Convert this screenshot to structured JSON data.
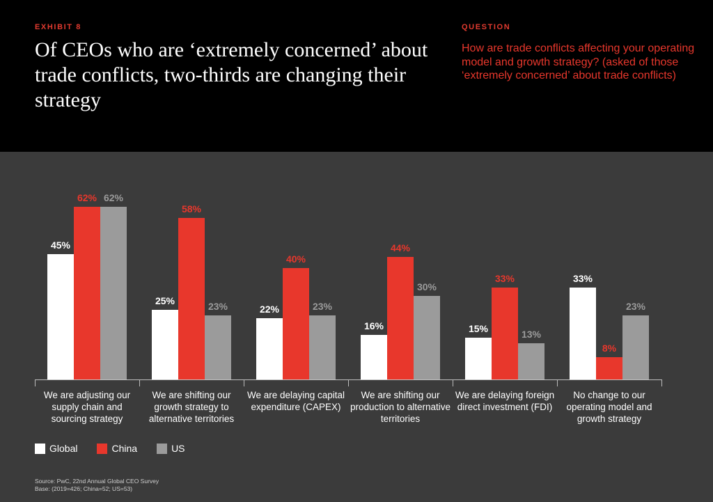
{
  "header": {
    "exhibit": "EXHIBIT 8",
    "headline": "Of CEOs who are ‘extremely concerned’ about trade conflicts, two-thirds are changing their strategy",
    "question_label": "QUESTION",
    "question": "How are trade conflicts affecting your operating model and growth strategy? (asked of those ‘extremely concerned’ about trade conflicts)"
  },
  "colors": {
    "background": "#3b3b3b",
    "header_background": "#000000",
    "accent": "#e03a2f",
    "global": "#ffffff",
    "china": "#e8372c",
    "us": "#9b9b9b"
  },
  "chart_data": {
    "type": "bar",
    "categories": [
      "We are adjusting our supply chain and sourcing strategy",
      "We are shifting our growth strategy to alternative territories",
      "We are delaying capital expenditure (CAPEX)",
      "We are shifting our production to alternative territories",
      "We are delaying foreign direct investment (FDI)",
      "No change to our operating model and growth strategy"
    ],
    "series": [
      {
        "name": "Global",
        "color": "#ffffff",
        "label_color": "#ffffff",
        "values": [
          45,
          25,
          22,
          16,
          15,
          33
        ]
      },
      {
        "name": "China",
        "color": "#e8372c",
        "label_color": "#e8372c",
        "values": [
          62,
          58,
          40,
          44,
          33,
          8
        ]
      },
      {
        "name": "US",
        "color": "#9b9b9b",
        "label_color": "#9b9b9b",
        "values": [
          62,
          23,
          23,
          30,
          13,
          23
        ]
      }
    ],
    "value_suffix": "%",
    "ylim": [
      0,
      70
    ],
    "grid": false,
    "legend_position": "bottom-left",
    "xlabel": "",
    "ylabel": ""
  },
  "footer": {
    "source": "Source: PwC, 22nd Annual Global CEO Survey",
    "base": "Base: (2019=426; China=52; US=53)"
  }
}
